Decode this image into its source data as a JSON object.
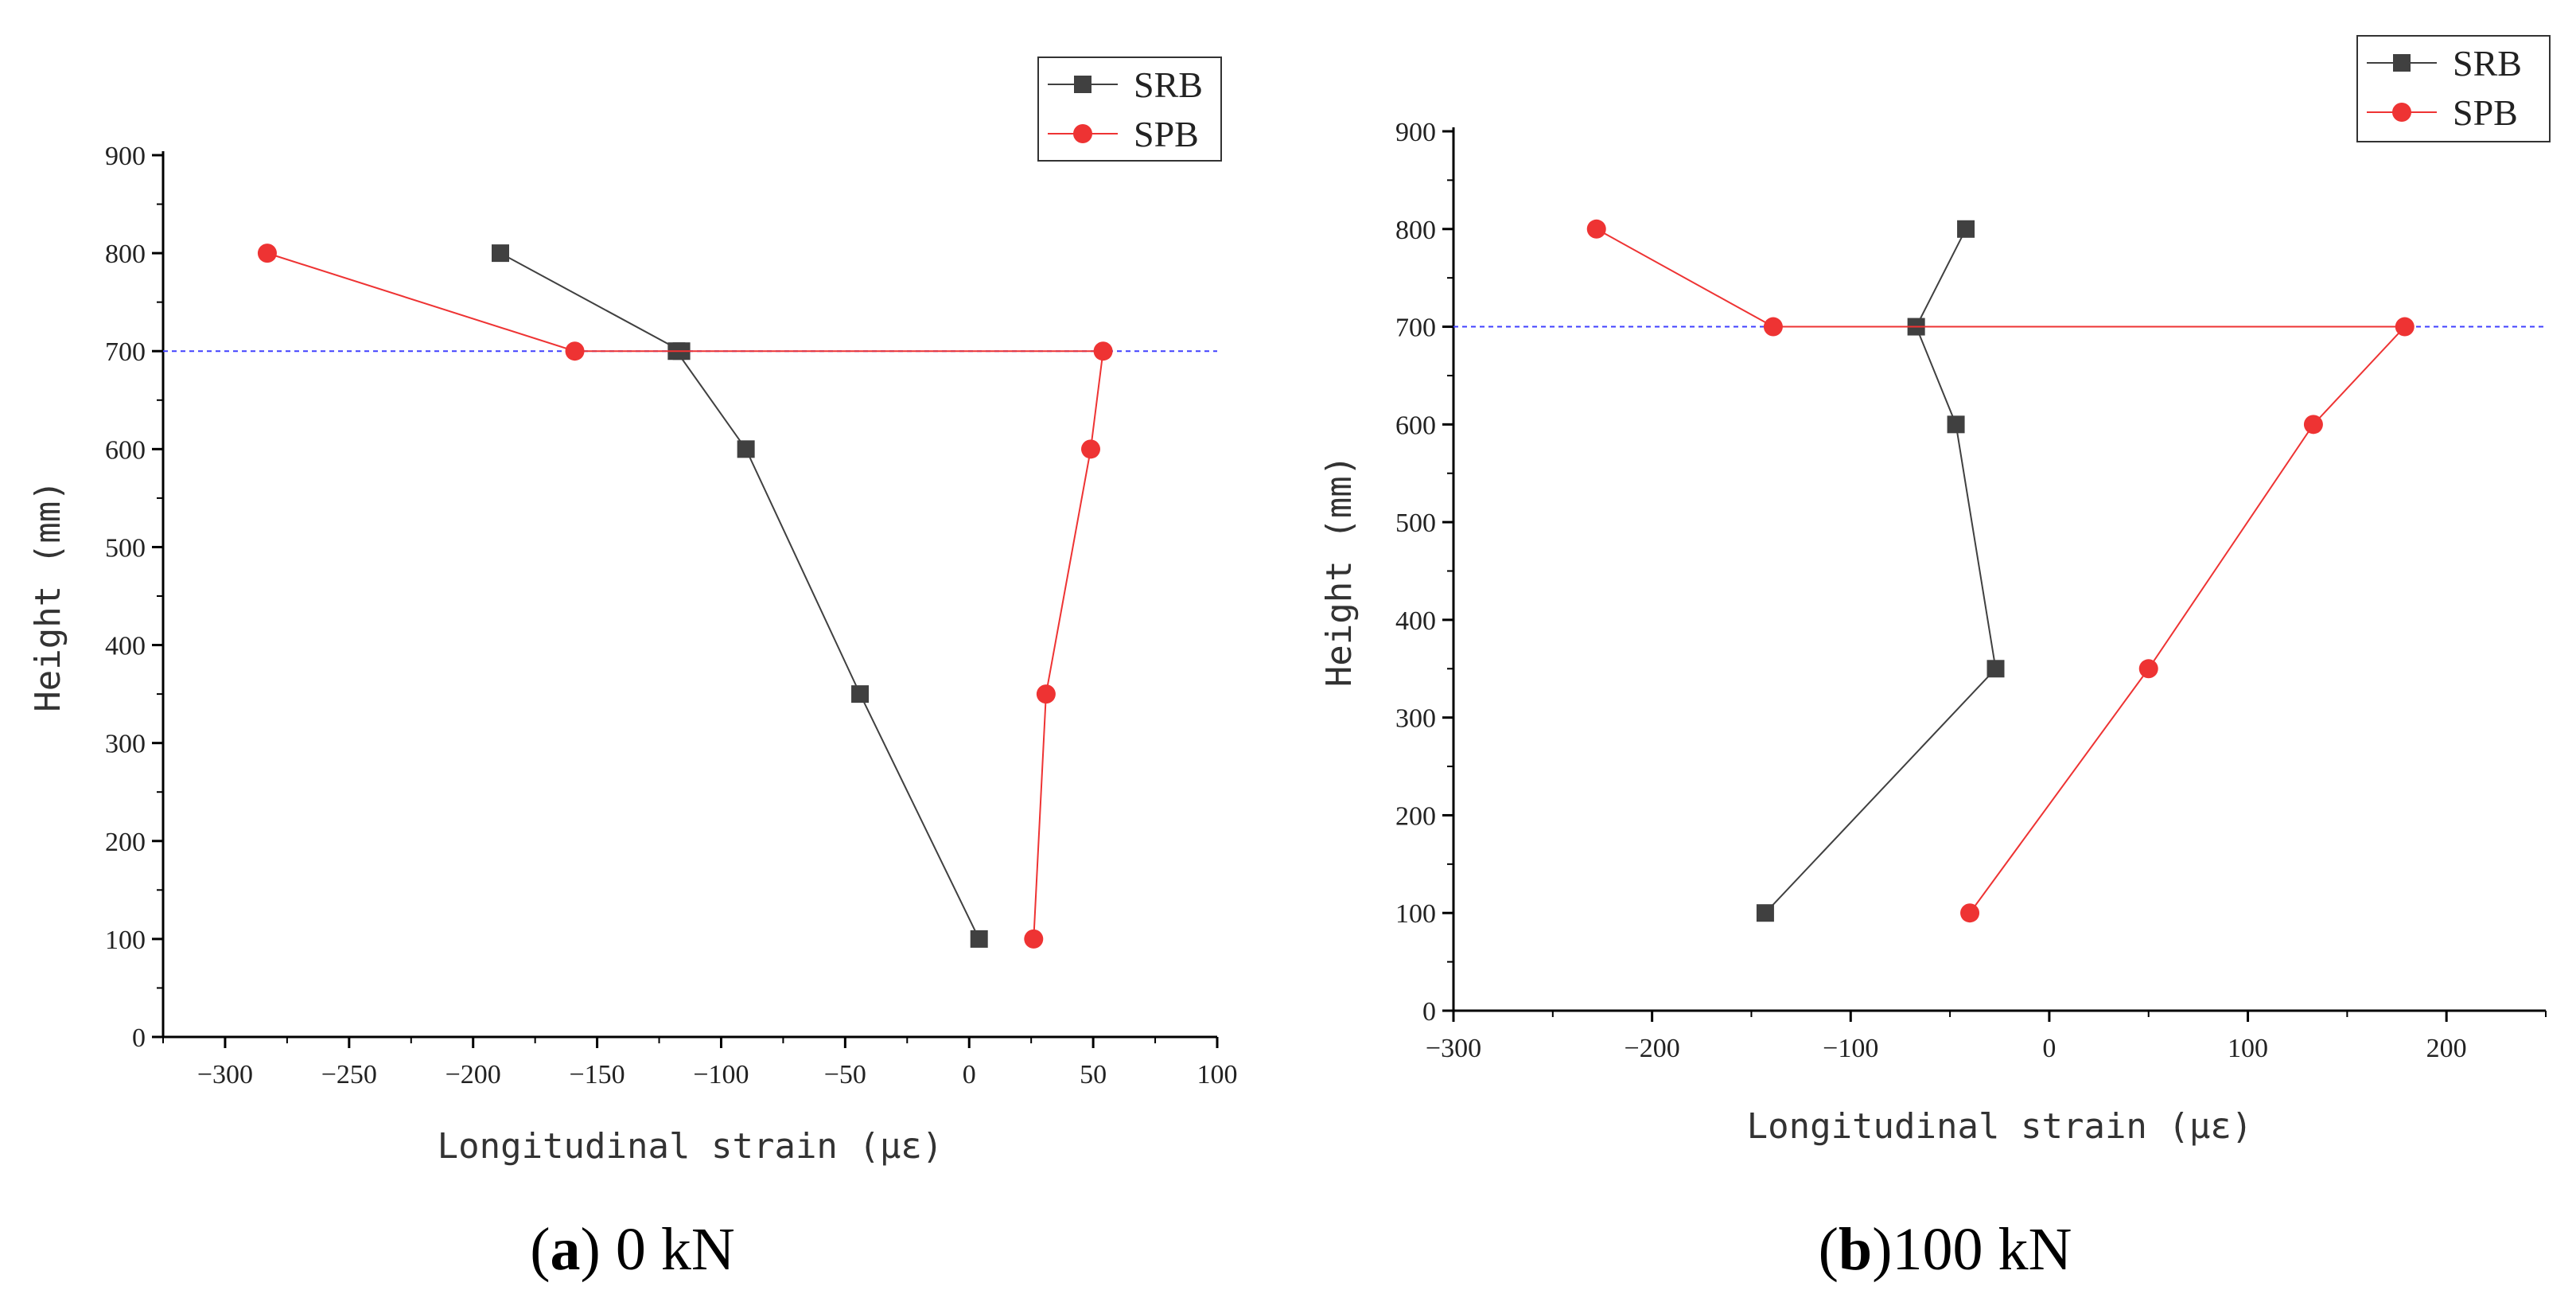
{
  "chart_data": [
    {
      "type": "line",
      "panel": "a",
      "caption": {
        "label": "a",
        "text": "0 kN"
      },
      "xlabel": "Longitudinal strain (με)",
      "ylabel": "Height (mm)",
      "xlim": [
        -325,
        100
      ],
      "ylim": [
        0,
        900
      ],
      "xticks": [
        -300,
        -250,
        -200,
        -150,
        -100,
        -50,
        0,
        50,
        100
      ],
      "yticks": [
        0,
        100,
        200,
        300,
        400,
        500,
        600,
        700,
        800,
        900
      ],
      "reference_line": {
        "y": 700,
        "color": "#4040ff",
        "style": "dashed"
      },
      "legend_position": "top-right",
      "series": [
        {
          "name": "SRB",
          "color": "#404040",
          "marker": "square",
          "points": [
            [
              -189,
              800
            ],
            [
              -116,
              700
            ],
            [
              -118,
              700
            ],
            [
              -90,
              600
            ],
            [
              -44,
              350
            ],
            [
              4,
              100
            ]
          ]
        },
        {
          "name": "SPB",
          "color": "#ee3333",
          "marker": "circle",
          "points": [
            [
              -283,
              800
            ],
            [
              -159,
              700
            ],
            [
              54,
              700
            ],
            [
              49,
              600
            ],
            [
              31,
              350
            ],
            [
              26,
              100
            ]
          ]
        }
      ]
    },
    {
      "type": "line",
      "panel": "b",
      "caption": {
        "label": "b",
        "text": "100 kN"
      },
      "xlabel": "Longitudinal strain (με)",
      "ylabel": "Height (mm)",
      "xlim": [
        -300,
        250
      ],
      "ylim": [
        0,
        900
      ],
      "xticks": [
        -300,
        -200,
        -100,
        0,
        100,
        200
      ],
      "yticks": [
        0,
        100,
        200,
        300,
        400,
        500,
        600,
        700,
        800,
        900
      ],
      "reference_line": {
        "y": 700,
        "color": "#4040ff",
        "style": "dashed"
      },
      "legend_position": "top-right",
      "series": [
        {
          "name": "SRB",
          "color": "#404040",
          "marker": "square",
          "points": [
            [
              -143,
              100
            ],
            [
              -27,
              350
            ],
            [
              -47,
              600
            ],
            [
              -67,
              700
            ],
            [
              -42,
              800
            ]
          ]
        },
        {
          "name": "SPB",
          "color": "#ee3333",
          "marker": "circle",
          "points": [
            [
              -228,
              800
            ],
            [
              -139,
              700
            ],
            [
              179,
              700
            ],
            [
              133,
              600
            ],
            [
              50,
              350
            ],
            [
              -40,
              100
            ]
          ]
        }
      ]
    }
  ]
}
